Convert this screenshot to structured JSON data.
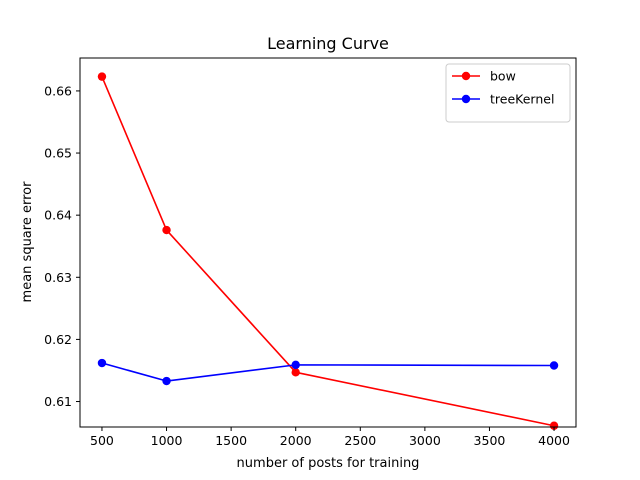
{
  "chart_data": {
    "type": "line",
    "title": "Learning Curve",
    "xlabel": "number of posts for training",
    "ylabel": "mean square error",
    "xlim": [
      330,
      4170
    ],
    "ylim": [
      0.6059,
      0.6653
    ],
    "x_ticks": [
      500,
      1000,
      1500,
      2000,
      2500,
      3000,
      3500,
      4000
    ],
    "y_ticks": [
      0.61,
      0.62,
      0.63,
      0.64,
      0.65,
      0.66
    ],
    "x_tick_labels": [
      "500",
      "1000",
      "1500",
      "2000",
      "2500",
      "3000",
      "3500",
      "4000"
    ],
    "y_tick_labels": [
      "0.61",
      "0.62",
      "0.63",
      "0.64",
      "0.65",
      "0.66"
    ],
    "grid": false,
    "legend_position": "upper right",
    "x": [
      500,
      1000,
      2000,
      4000
    ],
    "series": [
      {
        "name": "bow",
        "color": "#ff0000",
        "marker": "circle",
        "values": [
          0.6623,
          0.6376,
          0.6147,
          0.6061
        ]
      },
      {
        "name": "treeKernel",
        "color": "#0000ff",
        "marker": "circle",
        "values": [
          0.6162,
          0.6133,
          0.6159,
          0.6158
        ]
      }
    ]
  }
}
